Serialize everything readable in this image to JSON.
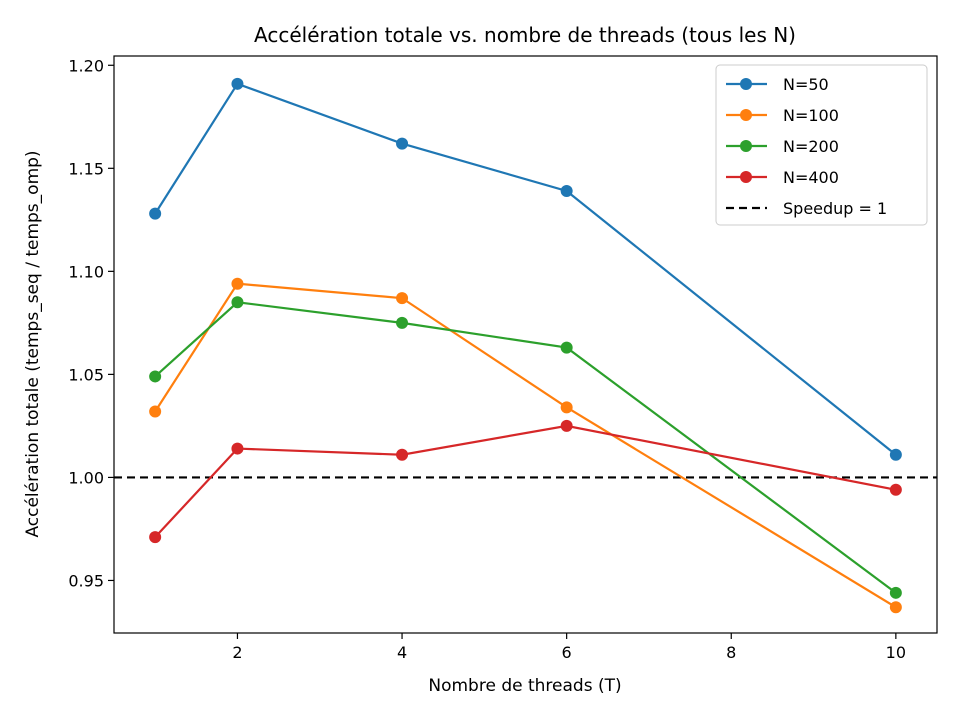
{
  "chart_data": {
    "type": "line",
    "title": "Accélération totale vs. nombre de threads (tous les N)",
    "xlabel": "Nombre de threads (T)",
    "ylabel": "Accélération totale (temps_seq / temps_omp)",
    "xlim": [
      0.5,
      10.5
    ],
    "ylim": [
      0.9245,
      1.2045
    ],
    "xticks": [
      2,
      4,
      6,
      8,
      10
    ],
    "xtick_labels": [
      "2",
      "4",
      "6",
      "8",
      "10"
    ],
    "yticks": [
      0.95,
      1.0,
      1.05,
      1.1,
      1.15,
      1.2
    ],
    "ytick_labels": [
      "0.95",
      "1.00",
      "1.05",
      "1.10",
      "1.15",
      "1.20"
    ],
    "x": [
      1,
      2,
      4,
      6,
      10
    ],
    "series": [
      {
        "name": "N=50",
        "color": "#1f77b4",
        "values": [
          1.128,
          1.191,
          1.162,
          1.139,
          1.011
        ]
      },
      {
        "name": "N=100",
        "color": "#ff7f0e",
        "values": [
          1.032,
          1.094,
          1.087,
          1.034,
          0.937
        ]
      },
      {
        "name": "N=200",
        "color": "#2ca02c",
        "values": [
          1.049,
          1.085,
          1.075,
          1.063,
          0.944
        ]
      },
      {
        "name": "N=400",
        "color": "#d62728",
        "values": [
          0.971,
          1.014,
          1.011,
          1.025,
          0.994
        ]
      }
    ],
    "reference_line": {
      "name": "Speedup = 1",
      "y": 1.0,
      "color": "#000000",
      "style": "dashed"
    },
    "grid": false,
    "legend_position": "top-right"
  }
}
